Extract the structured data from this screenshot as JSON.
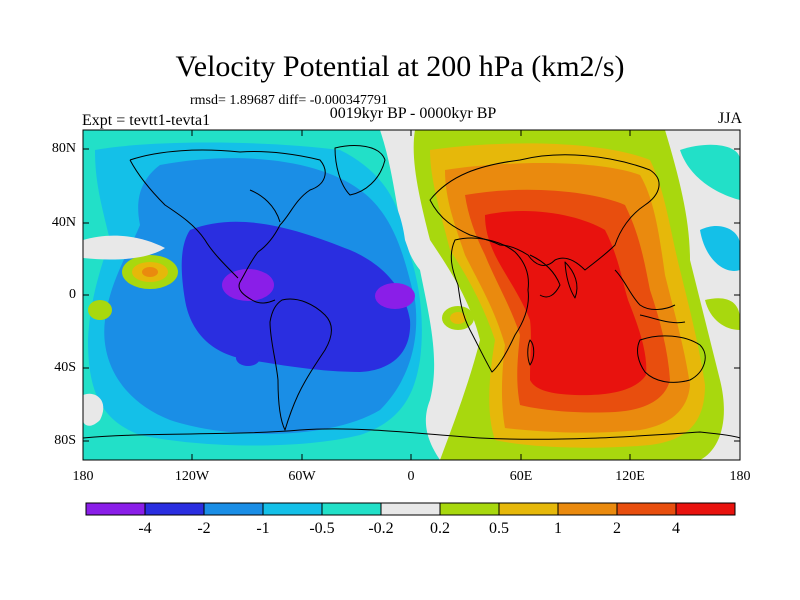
{
  "title": "Velocity Potential at 200 hPa (km2/s)",
  "stats": "rmsd= 1.89687 diff= -0.000347791",
  "experiment": "Expt = tevtt1-tevta1",
  "period": "0019kyr BP - 0000kyr BP",
  "season": "JJA",
  "y_ticks": [
    "80N",
    "40N",
    "0",
    "40S",
    "80S"
  ],
  "x_ticks": [
    "180",
    "120W",
    "60W",
    "0",
    "60E",
    "120E",
    "180"
  ],
  "colorbar": {
    "labels": [
      "-4",
      "-2",
      "-1",
      "-0.5",
      "-0.2",
      "0.2",
      "0.5",
      "1",
      "2",
      "4"
    ],
    "colors": [
      "#8a1ee8",
      "#2a2ee0",
      "#1a8ee6",
      "#14c0e8",
      "#22e0c8",
      "#e8e8e8",
      "#a8d80e",
      "#e6b80a",
      "#ea8a0e",
      "#e84e0e",
      "#e8120e"
    ]
  }
}
